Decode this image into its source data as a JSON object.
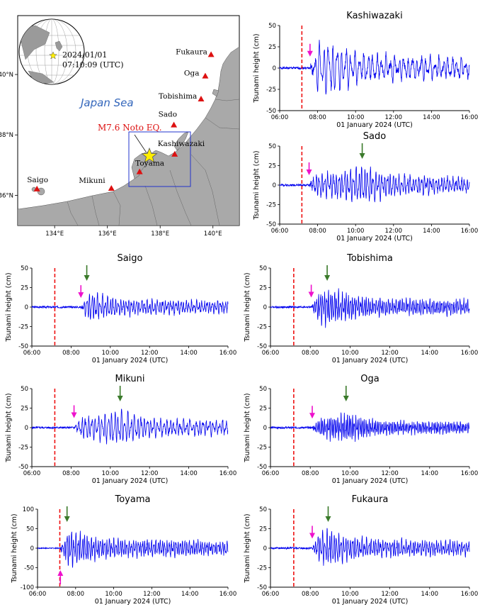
{
  "map": {
    "date_line1": "2024/01/01",
    "date_line2": "07:10:09 (UTC)",
    "sea_label": "Japan Sea",
    "eq_label": "M7.6 Noto EQ.",
    "lon_ticks": [
      "134°E",
      "136°E",
      "138°E",
      "140°E"
    ],
    "lat_ticks": [
      "36°N",
      "38°N",
      "40°N"
    ],
    "stations": [
      {
        "name": "Fukaura",
        "lon": 139.93,
        "lat": 40.65
      },
      {
        "name": "Oga",
        "lon": 139.71,
        "lat": 39.94
      },
      {
        "name": "Tobishima",
        "lon": 139.55,
        "lat": 39.18
      },
      {
        "name": "Sado",
        "lon": 138.52,
        "lat": 38.32
      },
      {
        "name": "Kashiwazaki",
        "lon": 138.55,
        "lat": 37.35
      },
      {
        "name": "Toyama",
        "lon": 137.22,
        "lat": 36.77
      },
      {
        "name": "Mikuni",
        "lon": 136.15,
        "lat": 36.22
      },
      {
        "name": "Saigo",
        "lon": 133.33,
        "lat": 36.2
      }
    ],
    "epicenter": {
      "lon": 137.27,
      "lat": 37.5
    },
    "colors": {
      "sea": "#ffffff",
      "land": "#a9a9a9",
      "station": "#dd1111",
      "star": "#ffee00",
      "box": "#2233cc",
      "sea_label": "#3366bb",
      "eq_label": "#dd1111"
    }
  },
  "chart_data": [
    {
      "type": "line",
      "station": "Kashiwazaki",
      "title": "Kashiwazaki",
      "xlabel": "01 January 2024 (UTC)",
      "ylabel": "Tsunami height (cm)",
      "ylim": [
        -50,
        50
      ],
      "yticks": [
        -50,
        -25,
        0,
        25,
        50
      ],
      "xlim_hours": [
        6,
        16
      ],
      "xticks": [
        "06:00",
        "08:00",
        "10:00",
        "12:00",
        "14:00",
        "16:00"
      ],
      "eq_time_h": 7.17,
      "first_arrival_h": 7.6,
      "max_h": null,
      "amp": 30,
      "period_min": 14,
      "seed": 1
    },
    {
      "type": "line",
      "station": "Sado",
      "title": "Sado",
      "xlabel": "01 January 2024 (UTC)",
      "ylabel": "Tsunami height (cm)",
      "ylim": [
        -50,
        50
      ],
      "yticks": [
        -50,
        -25,
        0,
        25,
        50
      ],
      "xlim_hours": [
        6,
        16
      ],
      "xticks": [
        "06:00",
        "08:00",
        "10:00",
        "12:00",
        "14:00",
        "16:00"
      ],
      "eq_time_h": 7.17,
      "first_arrival_h": 7.55,
      "max_h": 10.35,
      "amp": 25,
      "period_min": 9,
      "seed": 2
    },
    {
      "type": "line",
      "station": "Saigo",
      "title": "Saigo",
      "xlabel": "01 January 2024 (UTC)",
      "ylabel": "Tsunami height (cm)",
      "ylim": [
        -50,
        50
      ],
      "yticks": [
        -50,
        -25,
        0,
        25,
        50
      ],
      "xlim_hours": [
        6,
        16
      ],
      "xticks": [
        "06:00",
        "08:00",
        "10:00",
        "12:00",
        "14:00",
        "16:00"
      ],
      "eq_time_h": 7.17,
      "first_arrival_h": 8.5,
      "max_h": 8.8,
      "amp": 18,
      "period_min": 8,
      "seed": 3
    },
    {
      "type": "line",
      "station": "Tobishima",
      "title": "Tobishima",
      "xlabel": "01 January 2024 (UTC)",
      "ylabel": "Tsunami height (cm)",
      "ylim": [
        -50,
        50
      ],
      "yticks": [
        -50,
        -25,
        0,
        25,
        50
      ],
      "xlim_hours": [
        6,
        16
      ],
      "xticks": [
        "06:00",
        "08:00",
        "10:00",
        "12:00",
        "14:00",
        "16:00"
      ],
      "eq_time_h": 7.17,
      "first_arrival_h": 8.05,
      "max_h": 8.85,
      "amp": 22,
      "period_min": 6,
      "seed": 4
    },
    {
      "type": "line",
      "station": "Mikuni",
      "title": "Mikuni",
      "xlabel": "01 January 2024 (UTC)",
      "ylabel": "Tsunami height (cm)",
      "ylim": [
        -50,
        50
      ],
      "yticks": [
        -50,
        -25,
        0,
        25,
        50
      ],
      "xlim_hours": [
        6,
        16
      ],
      "xticks": [
        "06:00",
        "08:00",
        "10:00",
        "12:00",
        "14:00",
        "16:00"
      ],
      "eq_time_h": 7.17,
      "first_arrival_h": 8.15,
      "max_h": 10.5,
      "amp": 22,
      "period_min": 10,
      "seed": 5
    },
    {
      "type": "line",
      "station": "Oga",
      "title": "Oga",
      "xlabel": "01 January 2024 (UTC)",
      "ylabel": "Tsunami height (cm)",
      "ylim": [
        -50,
        50
      ],
      "yticks": [
        -50,
        -25,
        0,
        25,
        50
      ],
      "xlim_hours": [
        6,
        16
      ],
      "xticks": [
        "06:00",
        "08:00",
        "10:00",
        "12:00",
        "14:00",
        "16:00"
      ],
      "eq_time_h": 7.17,
      "first_arrival_h": 8.1,
      "max_h": 9.8,
      "amp": 17,
      "period_min": 5,
      "seed": 6
    },
    {
      "type": "line",
      "station": "Toyama",
      "title": "Toyama",
      "xlabel": "01 January 2024 (UTC)",
      "ylabel": "Tsunami height (cm)",
      "ylim": [
        -100,
        100
      ],
      "yticks": [
        -100,
        -50,
        0,
        50,
        100
      ],
      "xlim_hours": [
        6,
        16
      ],
      "xticks": [
        "06:00",
        "08:00",
        "10:00",
        "12:00",
        "14:00",
        "16:00"
      ],
      "eq_time_h": 7.17,
      "first_arrival_h": 7.2,
      "arrival_up": true,
      "max_h": 7.55,
      "amp": 45,
      "period_min": 7,
      "seed": 7
    },
    {
      "type": "line",
      "station": "Fukaura",
      "title": "Fukaura",
      "xlabel": "01 January 2024 (UTC)",
      "ylabel": "Tsunami height (cm)",
      "ylim": [
        -50,
        50
      ],
      "yticks": [
        -50,
        -25,
        0,
        25,
        50
      ],
      "xlim_hours": [
        6,
        16
      ],
      "xticks": [
        "06:00",
        "08:00",
        "10:00",
        "12:00",
        "14:00",
        "16:00"
      ],
      "eq_time_h": 7.17,
      "first_arrival_h": 8.1,
      "max_h": 8.9,
      "amp": 22,
      "period_min": 7,
      "seed": 8
    }
  ],
  "colors": {
    "trace": "#0000ee",
    "eq_line": "#ee1111",
    "first_arrow": "#ee11cc",
    "max_arrow": "#3a7a2a"
  }
}
